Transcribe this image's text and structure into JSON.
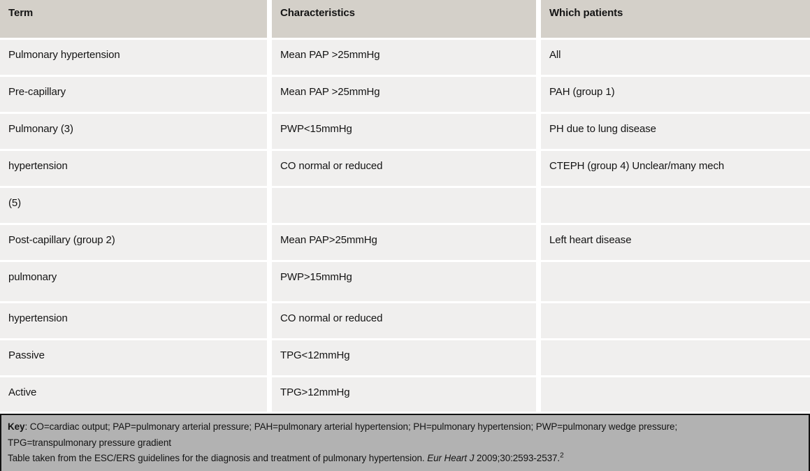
{
  "table": {
    "columns": [
      "Term",
      "Characteristics",
      "Which patients"
    ],
    "rows": [
      {
        "term": "Pulmonary hypertension",
        "characteristics": "Mean PAP >25mmHg",
        "patients": "All"
      },
      {
        "term": "Pre-capillary",
        "characteristics": "Mean PAP >25mmHg",
        "patients": "PAH (group 1)"
      },
      {
        "term": "Pulmonary (3)",
        "characteristics": "PWP<15mmHg",
        "patients": "PH due to lung disease"
      },
      {
        "term": "hypertension",
        "characteristics": "CO normal or reduced",
        "patients": "CTEPH (group 4) Unclear/many mech"
      },
      {
        "term": "(5)",
        "characteristics": "",
        "patients": ""
      },
      {
        "term": "Post-capillary (group 2)",
        "characteristics": "Mean PAP>25mmHg",
        "patients": "Left heart disease"
      },
      {
        "term": "pulmonary",
        "characteristics": "PWP>15mmHg",
        "patients": ""
      },
      {
        "term": "hypertension",
        "characteristics": "CO normal or reduced",
        "patients": ""
      },
      {
        "term": "Passive",
        "characteristics": "TPG<12mmHg",
        "patients": ""
      },
      {
        "term": "Active",
        "characteristics": "TPG>12mmHg",
        "patients": ""
      }
    ]
  },
  "footer": {
    "key_label": "Key",
    "key_line1": ": CO=cardiac output; PAP=pulmonary arterial pressure; PAH=pulmonary arterial hypertension; PH=pulmonary hypertension; PWP=pulmonary wedge pressure;",
    "key_line2": "TPG=transpulmonary pressure gradient",
    "source_prefix": "Table taken from the ESC/ERS guidelines for the diagnosis and treatment of pulmonary hypertension. ",
    "source_journal": "Eur Heart J",
    "source_suffix": " 2009;30:2593-2537.",
    "source_superscript": "2"
  },
  "colors": {
    "header_bg": "#d4d0c9",
    "row_bg": "#f0efee",
    "footer_bg": "#b2b2b2",
    "separator": "#ffffff",
    "footer_border": "#121212",
    "text": "#141414"
  }
}
